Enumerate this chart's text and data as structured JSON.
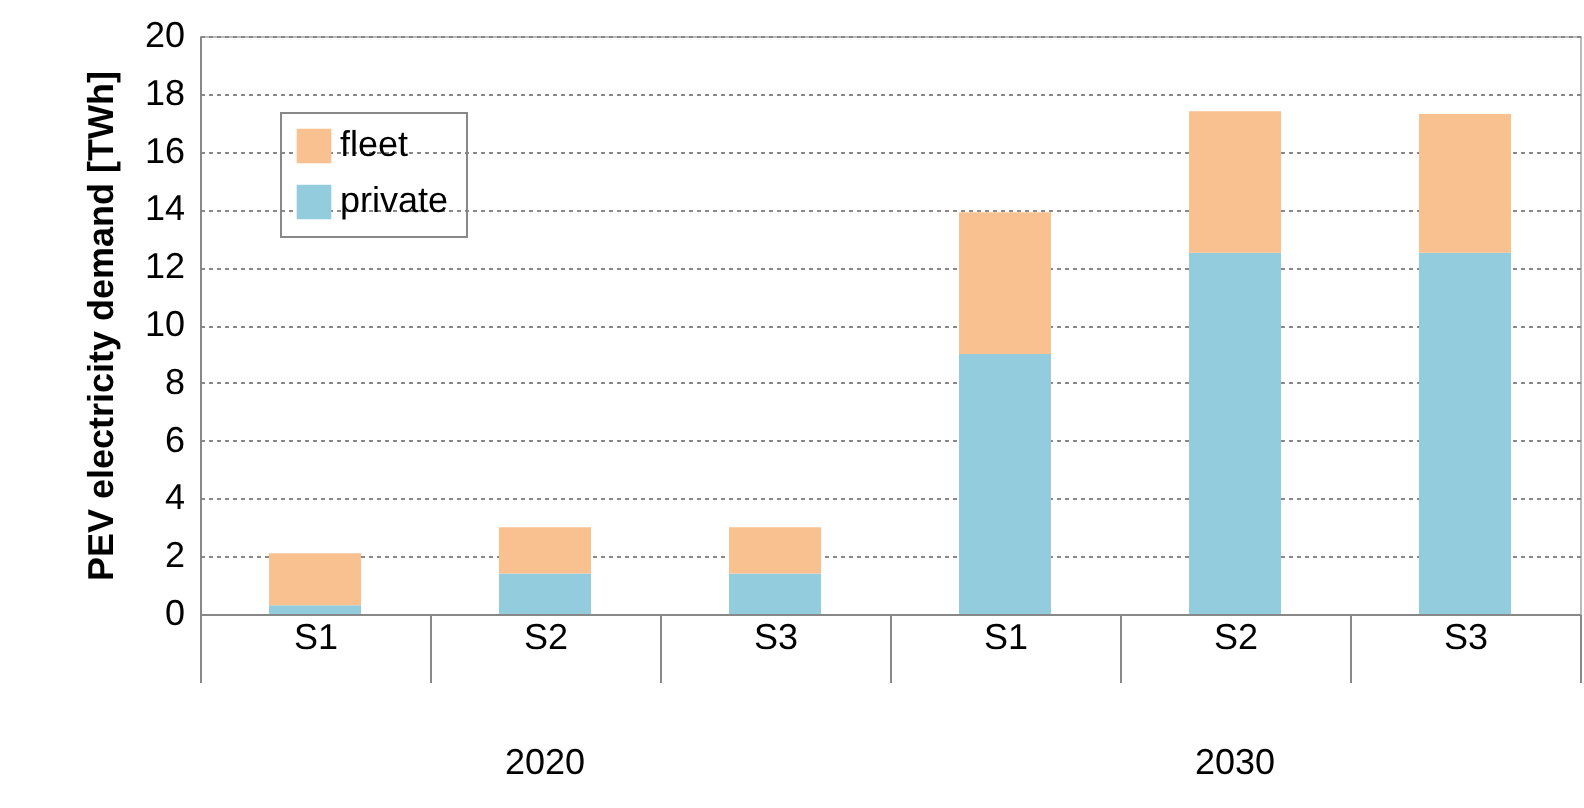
{
  "chart_data": {
    "type": "bar",
    "ylabel": "PEV electricity demand [TWh]",
    "categories": [
      "S1",
      "S2",
      "S3",
      "S1",
      "S2",
      "S3"
    ],
    "stacked": true,
    "series": [
      {
        "name": "private",
        "color": "#93cddd",
        "values": [
          0.3,
          1.4,
          1.4,
          9.0,
          12.5,
          12.5
        ]
      },
      {
        "name": "fleet",
        "color": "#f9c090",
        "values": [
          1.8,
          1.6,
          1.6,
          4.9,
          4.9,
          4.8
        ]
      }
    ],
    "annotations": [
      "2020",
      "2030"
    ],
    "ylim": [
      0,
      20
    ],
    "yticks": [
      0,
      2,
      4,
      6,
      8,
      10,
      12,
      14,
      16,
      18,
      20
    ],
    "grid": "y",
    "legend": "top left"
  }
}
